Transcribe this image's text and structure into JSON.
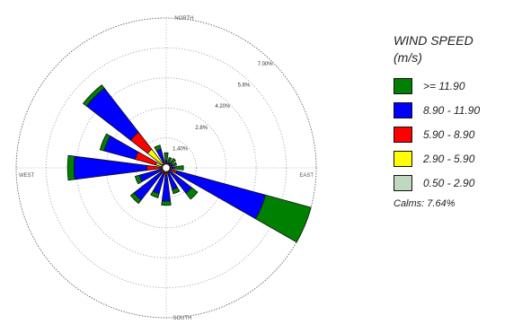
{
  "chart_data": {
    "type": "windrose",
    "direction_labels": {
      "north": "NORTH",
      "south": "SOUTH",
      "east": "EAST",
      "west": "WEST"
    },
    "ring_max": 7.0,
    "ring_labels": [
      {
        "value": 1.4,
        "label": "1.40%"
      },
      {
        "value": 2.8,
        "label": "2.8%"
      },
      {
        "value": 4.2,
        "label": "4.20%"
      },
      {
        "value": 5.6,
        "label": "5.6%"
      },
      {
        "value": 7.0,
        "label": "7.00%"
      }
    ],
    "legend_title": [
      "WIND SPEED",
      "(m/s)"
    ],
    "speed_classes": [
      {
        "label": ">= 11.90",
        "color": "#008000"
      },
      {
        "label": "8.90 - 11.90",
        "color": "#0000ff"
      },
      {
        "label": "5.90 - 8.90",
        "color": "#ff0000"
      },
      {
        "label": "2.90 - 5.90",
        "color": "#ffff00"
      },
      {
        "label": "0.50 - 2.90",
        "color": "#c0d8c0"
      }
    ],
    "calms": "Calms: 7.64%",
    "directions": [
      {
        "deg": 0,
        "values": [
          0.35,
          0.25,
          0,
          0,
          0
        ]
      },
      {
        "deg": 22.5,
        "values": [
          0.25,
          0.15,
          0,
          0,
          0
        ]
      },
      {
        "deg": 45,
        "values": [
          0.25,
          0.2,
          0,
          0,
          0
        ]
      },
      {
        "deg": 67.5,
        "values": [
          0.2,
          0.2,
          0,
          0,
          0
        ]
      },
      {
        "deg": 90,
        "values": [
          0.4,
          0.3,
          0,
          0,
          0
        ]
      },
      {
        "deg": 112.5,
        "values": [
          2.2,
          4.3,
          0.4,
          0,
          0
        ]
      },
      {
        "deg": 135,
        "values": [
          0.35,
          1.3,
          0.1,
          0,
          0
        ]
      },
      {
        "deg": 157.5,
        "values": [
          0.2,
          0.8,
          0.1,
          0.05,
          0
        ]
      },
      {
        "deg": 180,
        "values": [
          0.2,
          1.2,
          0.2,
          0.05,
          0
        ]
      },
      {
        "deg": 202.5,
        "values": [
          0.2,
          1.0,
          0.1,
          0.05,
          0
        ]
      },
      {
        "deg": 225,
        "values": [
          0.2,
          1.6,
          0.2,
          0,
          0
        ]
      },
      {
        "deg": 247.5,
        "values": [
          0.2,
          1.1,
          0.1,
          0,
          0
        ]
      },
      {
        "deg": 270,
        "values": [
          0.3,
          3.4,
          0.8,
          0,
          0
        ]
      },
      {
        "deg": 292.5,
        "values": [
          0.2,
          1.5,
          1.0,
          0.4,
          0
        ]
      },
      {
        "deg": 315,
        "values": [
          0.2,
          2.6,
          1.0,
          1.0,
          0
        ]
      },
      {
        "deg": 337.5,
        "values": [
          0.2,
          0.6,
          0.2,
          0,
          0
        ]
      }
    ]
  }
}
